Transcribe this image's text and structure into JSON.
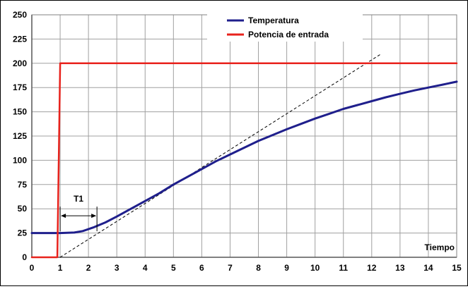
{
  "chart_data": {
    "type": "line",
    "xlabel": "Tiempo",
    "ylabel": "",
    "xlim": [
      0,
      15
    ],
    "ylim": [
      0,
      250
    ],
    "x_ticks": [
      0,
      1,
      2,
      3,
      4,
      5,
      6,
      7,
      8,
      9,
      10,
      11,
      12,
      13,
      14,
      15
    ],
    "y_ticks": [
      0,
      25,
      50,
      75,
      100,
      125,
      150,
      175,
      200,
      225,
      250
    ],
    "grid": true,
    "legend_position": "top-center",
    "series": [
      {
        "name": "Temperatura",
        "color": "#1f1f8c",
        "x": [
          0,
          0.5,
          1,
          1.5,
          1.8,
          2.2,
          2.6,
          3,
          3.5,
          4,
          4.5,
          5,
          5.5,
          6,
          6.5,
          7,
          7.5,
          8,
          8.5,
          9,
          9.5,
          10,
          10.5,
          11,
          11.5,
          12,
          12.5,
          13,
          13.5,
          14,
          14.5,
          15
        ],
        "y": [
          25,
          25,
          25,
          25.5,
          27,
          31,
          36,
          42,
          50,
          58,
          66,
          75,
          83,
          91,
          99,
          106,
          113,
          120,
          126,
          132,
          137.5,
          143,
          148,
          153,
          157,
          161,
          165,
          168.5,
          172,
          175,
          178,
          181
        ]
      },
      {
        "name": "Potencia de entrada",
        "color": "#e8221c",
        "x": [
          0,
          0.9,
          1.0,
          1.05,
          15
        ],
        "y": [
          0,
          0,
          200,
          200,
          200
        ]
      }
    ],
    "tangent": {
      "style": "dashed",
      "color": "#000000",
      "x": [
        1.0,
        12.35
      ],
      "y": [
        0,
        210
      ]
    },
    "annotations": [
      {
        "text": "T1",
        "x_from": 1.0,
        "x_to": 2.3,
        "y": 45
      }
    ]
  }
}
